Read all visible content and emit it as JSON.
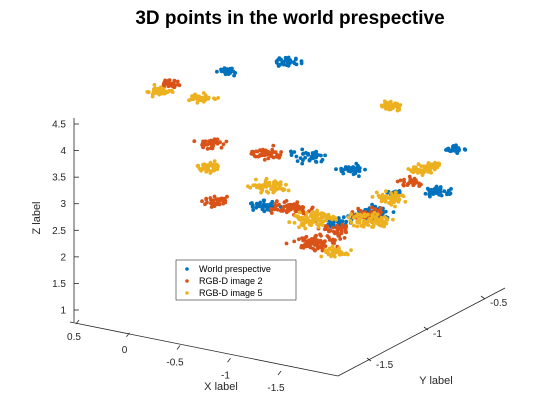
{
  "chart_data": {
    "type": "scatter",
    "projection": "3d",
    "title": "3D points in the world prespective",
    "xlabel": "X label",
    "ylabel": "Y label",
    "zlabel": "Z label",
    "xticks": [
      "0.5",
      "0",
      "-0.5",
      "-1",
      "-1.5"
    ],
    "yticks": [
      "-0.5",
      "-1",
      "-1.5"
    ],
    "zticks": [
      "1",
      "1.5",
      "2",
      "2.5",
      "3",
      "3.5",
      "4",
      "4.5"
    ],
    "xlim": [
      -1.9,
      0.7
    ],
    "ylim": [
      -1.9,
      -0.3
    ],
    "zlim": [
      0.9,
      4.6
    ],
    "grid": false,
    "legend_position": "lower-left",
    "series": [
      {
        "name": "World prespective",
        "color": "#0072BD",
        "clusters": [
          {
            "x": 0.35,
            "y": -0.7,
            "z": 4.5,
            "spread": 0.05,
            "n": 30
          },
          {
            "x": 0.05,
            "y": -0.45,
            "z": 4.55,
            "spread": 0.06,
            "n": 35
          },
          {
            "x": -0.35,
            "y": -0.65,
            "z": 3.2,
            "spread": 0.08,
            "n": 40
          },
          {
            "x": -0.65,
            "y": -0.55,
            "z": 3.0,
            "spread": 0.07,
            "n": 45
          },
          {
            "x": -1.05,
            "y": -0.75,
            "z": 2.6,
            "spread": 0.1,
            "n": 60
          },
          {
            "x": -1.4,
            "y": -0.5,
            "z": 2.9,
            "spread": 0.07,
            "n": 40
          },
          {
            "x": -1.7,
            "y": -0.6,
            "z": 3.95,
            "spread": 0.05,
            "n": 25
          },
          {
            "x": -1.85,
            "y": -1.3,
            "z": 4.0,
            "spread": 0.04,
            "n": 18
          },
          {
            "x": -1.25,
            "y": -1.25,
            "z": 3.1,
            "spread": 0.08,
            "n": 40
          },
          {
            "x": -0.55,
            "y": -1.25,
            "z": 3.05,
            "spread": 0.08,
            "n": 40
          }
        ]
      },
      {
        "name": "RGB-D image 2",
        "color": "#D95319",
        "clusters": [
          {
            "x": 0.55,
            "y": -1.05,
            "z": 4.55,
            "spread": 0.05,
            "n": 35
          },
          {
            "x": 0.0,
            "y": -1.2,
            "z": 3.9,
            "spread": 0.07,
            "n": 35
          },
          {
            "x": -0.25,
            "y": -0.9,
            "z": 3.5,
            "spread": 0.08,
            "n": 45
          },
          {
            "x": -0.6,
            "y": -1.05,
            "z": 2.8,
            "spread": 0.1,
            "n": 70
          },
          {
            "x": -0.95,
            "y": -1.15,
            "z": 2.45,
            "spread": 0.11,
            "n": 80
          },
          {
            "x": -1.25,
            "y": -0.95,
            "z": 2.9,
            "spread": 0.08,
            "n": 50
          },
          {
            "x": -1.55,
            "y": -0.85,
            "z": 3.55,
            "spread": 0.06,
            "n": 30
          },
          {
            "x": -1.45,
            "y": -1.45,
            "z": 3.3,
            "spread": 0.07,
            "n": 35
          },
          {
            "x": -0.4,
            "y": -1.55,
            "z": 3.4,
            "spread": 0.07,
            "n": 35
          }
        ]
      },
      {
        "name": "RGB-D image 5",
        "color": "#EDB120",
        "clusters": [
          {
            "x": 0.6,
            "y": -1.1,
            "z": 4.45,
            "spread": 0.06,
            "n": 45
          },
          {
            "x": 0.3,
            "y": -1.0,
            "z": 4.35,
            "spread": 0.06,
            "n": 40
          },
          {
            "x": -0.1,
            "y": -1.35,
            "z": 3.65,
            "spread": 0.07,
            "n": 40
          },
          {
            "x": -0.45,
            "y": -1.1,
            "z": 3.2,
            "spread": 0.09,
            "n": 55
          },
          {
            "x": -0.8,
            "y": -1.05,
            "z": 2.7,
            "spread": 0.11,
            "n": 85
          },
          {
            "x": -1.1,
            "y": -0.8,
            "z": 2.55,
            "spread": 0.11,
            "n": 80
          },
          {
            "x": -1.35,
            "y": -0.85,
            "z": 3.15,
            "spread": 0.08,
            "n": 50
          },
          {
            "x": -1.6,
            "y": -0.8,
            "z": 3.75,
            "spread": 0.07,
            "n": 40
          },
          {
            "x": -1.8,
            "y": -0.9,
            "z": 4.05,
            "spread": 0.05,
            "n": 30
          },
          {
            "x": -1.05,
            "y": -0.55,
            "z": 4.4,
            "spread": 0.06,
            "n": 35
          },
          {
            "x": -1.5,
            "y": -1.5,
            "z": 2.95,
            "spread": 0.07,
            "n": 40
          }
        ]
      }
    ]
  }
}
